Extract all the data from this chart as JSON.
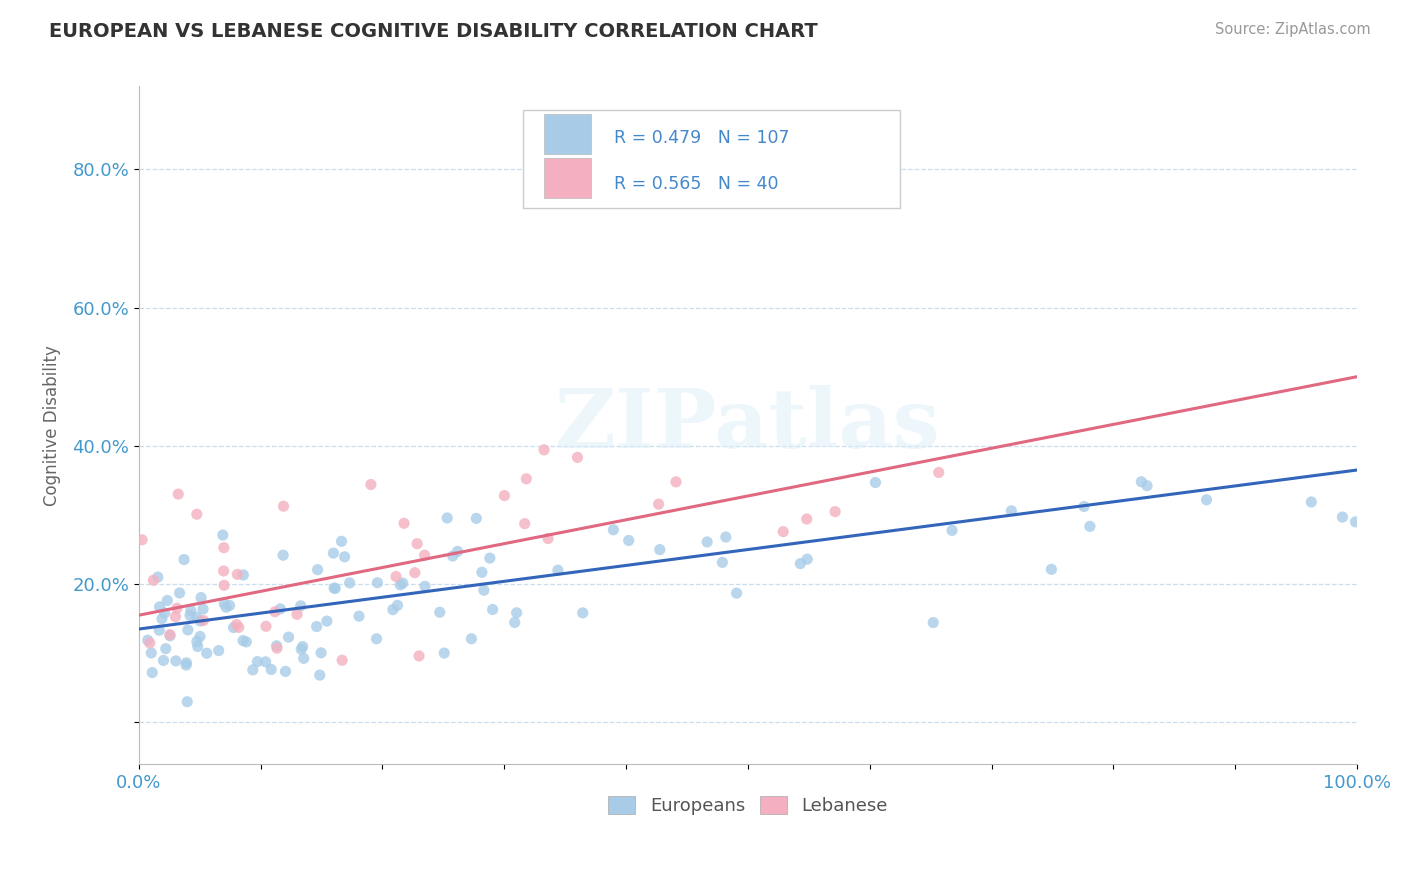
{
  "title": "EUROPEAN VS LEBANESE COGNITIVE DISABILITY CORRELATION CHART",
  "source": "Source: ZipAtlas.com",
  "ylabel": "Cognitive Disability",
  "xlim": [
    0.0,
    1.0
  ],
  "ylim": [
    -0.06,
    0.92
  ],
  "xticks": [
    0.0,
    0.1,
    0.2,
    0.3,
    0.4,
    0.5,
    0.6,
    0.7,
    0.8,
    0.9,
    1.0
  ],
  "xticklabels": [
    "0.0%",
    "",
    "",
    "",
    "",
    "",
    "",
    "",
    "",
    "",
    "100.0%"
  ],
  "yticks": [
    0.0,
    0.2,
    0.4,
    0.6,
    0.8
  ],
  "yticklabels": [
    "",
    "20.0%",
    "40.0%",
    "60.0%",
    "80.0%"
  ],
  "european_R": 0.479,
  "european_N": 107,
  "lebanese_R": 0.565,
  "lebanese_N": 40,
  "european_color": "#a8cce8",
  "lebanese_color": "#f4b0c0",
  "european_line_color": "#3366bb",
  "lebanese_line_color": "#e06880",
  "eu_line_y0": 0.135,
  "eu_line_y1": 0.365,
  "lb_line_y0": 0.155,
  "lb_line_y1": 0.5,
  "watermark": "ZIPatlas",
  "background_color": "#ffffff",
  "legend_european_label": "Europeans",
  "legend_lebanese_label": "Lebanese",
  "seed": 99
}
